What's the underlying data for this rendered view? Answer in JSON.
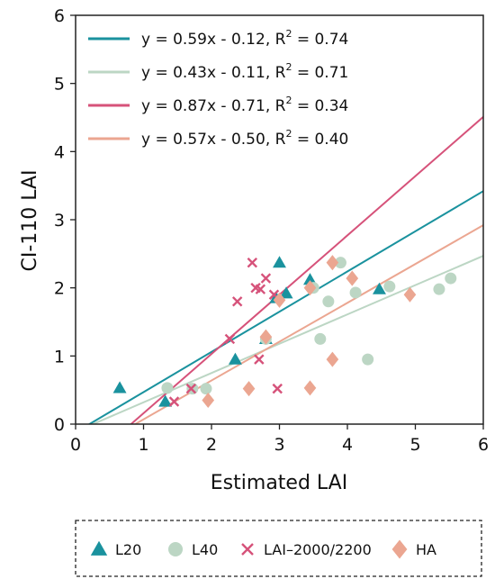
{
  "chart_data": {
    "type": "scatter",
    "xlabel": "Estimated LAI",
    "ylabel": "CI-110 LAI",
    "xlim": [
      0,
      6
    ],
    "ylim": [
      0,
      6
    ],
    "xticks": [
      "0",
      "1",
      "2",
      "3",
      "4",
      "5",
      "6"
    ],
    "yticks": [
      "0",
      "1",
      "2",
      "3",
      "4",
      "5",
      "6"
    ],
    "grid": false,
    "series": [
      {
        "name": "L20",
        "marker": "triangle",
        "color": "#1a929e",
        "points": [
          [
            0.65,
            0.53
          ],
          [
            1.32,
            0.33
          ],
          [
            2.35,
            0.95
          ],
          [
            2.8,
            1.25
          ],
          [
            2.95,
            1.85
          ],
          [
            3.0,
            2.37
          ],
          [
            3.1,
            1.92
          ],
          [
            3.45,
            2.12
          ],
          [
            4.47,
            1.98
          ]
        ]
      },
      {
        "name": "L40",
        "marker": "circle",
        "color": "#bcd6c4",
        "points": [
          [
            1.35,
            0.53
          ],
          [
            1.72,
            0.52
          ],
          [
            1.92,
            0.52
          ],
          [
            2.8,
            1.25
          ],
          [
            3.5,
            2.0
          ],
          [
            3.6,
            1.25
          ],
          [
            3.72,
            1.8
          ],
          [
            3.9,
            2.37
          ],
          [
            4.12,
            1.93
          ],
          [
            4.3,
            0.95
          ],
          [
            4.62,
            2.02
          ],
          [
            5.35,
            1.98
          ],
          [
            5.52,
            2.14
          ]
        ]
      },
      {
        "name": "LAI–2000/2200",
        "marker": "x",
        "color": "#d6527a",
        "points": [
          [
            1.45,
            0.33
          ],
          [
            1.7,
            0.52
          ],
          [
            2.27,
            1.25
          ],
          [
            2.38,
            1.8
          ],
          [
            2.6,
            2.37
          ],
          [
            2.65,
            2.0
          ],
          [
            2.7,
            0.95
          ],
          [
            2.72,
            1.98
          ],
          [
            2.8,
            2.14
          ],
          [
            2.92,
            1.9
          ],
          [
            2.97,
            0.52
          ]
        ]
      },
      {
        "name": "HA",
        "marker": "diamond",
        "color": "#eba691",
        "points": [
          [
            1.95,
            0.35
          ],
          [
            2.55,
            0.52
          ],
          [
            2.8,
            1.28
          ],
          [
            3.0,
            1.82
          ],
          [
            3.45,
            0.53
          ],
          [
            3.45,
            2.0
          ],
          [
            3.78,
            0.95
          ],
          [
            3.78,
            2.37
          ],
          [
            4.07,
            2.14
          ],
          [
            4.92,
            1.9
          ]
        ]
      }
    ],
    "fits": [
      {
        "equation": "y = 0.59x - 0.12, R",
        "r2": " = 0.74",
        "slope": 0.59,
        "intercept": -0.12,
        "color": "#1a929e"
      },
      {
        "equation": "y = 0.43x - 0.11, R",
        "r2": " = 0.71",
        "slope": 0.43,
        "intercept": -0.11,
        "color": "#bcd6c4"
      },
      {
        "equation": "y = 0.87x - 0.71, R",
        "r2": " = 0.34",
        "slope": 0.87,
        "intercept": -0.71,
        "color": "#d6527a"
      },
      {
        "equation": "y = 0.57x - 0.50, R",
        "r2": " = 0.40",
        "slope": 0.57,
        "intercept": -0.5,
        "color": "#eba691"
      }
    ],
    "legend_position": "bottom",
    "fit_legend_position": "top-left"
  }
}
